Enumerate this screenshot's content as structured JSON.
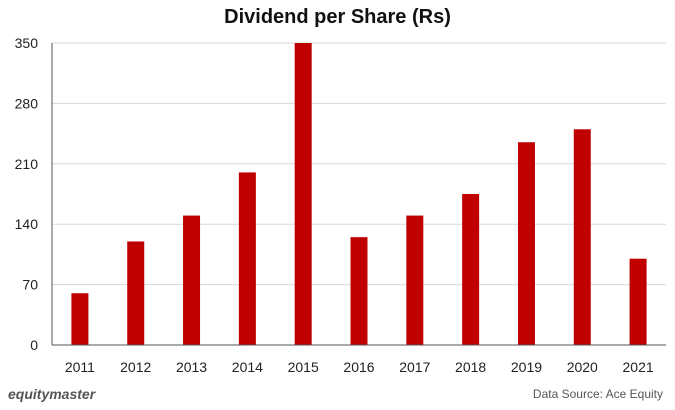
{
  "chart_data": {
    "type": "bar",
    "title": "Dividend per Share (Rs)",
    "categories": [
      "2011",
      "2012",
      "2013",
      "2014",
      "2015",
      "2016",
      "2017",
      "2018",
      "2019",
      "2020",
      "2021"
    ],
    "values": [
      60,
      120,
      150,
      200,
      350,
      125,
      150,
      175,
      235,
      250,
      100
    ],
    "ylim": [
      0,
      350
    ],
    "yticks": [
      0,
      70,
      140,
      210,
      280,
      350
    ],
    "grid": true,
    "bar_color": "#c00000"
  },
  "footer": {
    "brand": "equitymaster",
    "source": "Data Source: Ace Equity"
  }
}
